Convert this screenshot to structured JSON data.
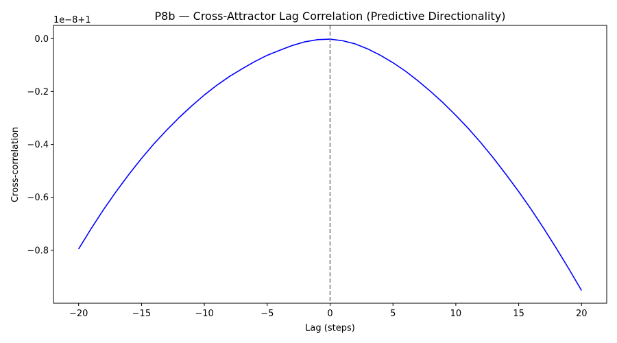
{
  "chart_data": {
    "type": "line",
    "title": "P8b — Cross-Attractor Lag Correlation (Predictive Directionality)",
    "xlabel": "Lag (steps)",
    "ylabel": "Cross-correlation",
    "offset_text": "1e−8+1",
    "xlim": [
      -22,
      22
    ],
    "ylim": [
      -1.0,
      0.05
    ],
    "x_ticks": [
      -20,
      -15,
      -10,
      -5,
      0,
      5,
      10,
      15,
      20
    ],
    "x_tick_labels": [
      "−20",
      "−15",
      "−10",
      "−5",
      "0",
      "5",
      "10",
      "15",
      "20"
    ],
    "y_ticks": [
      0.0,
      -0.2,
      -0.4,
      -0.6,
      -0.8
    ],
    "y_tick_labels": [
      "0.0",
      "−0.2",
      "−0.4",
      "−0.6",
      "−0.8"
    ],
    "grid": false,
    "reference_line": {
      "x": 0,
      "style": "dashed",
      "color": "#808080"
    },
    "series": [
      {
        "color": "#0000ff",
        "x": [
          -20,
          -19,
          -18,
          -17,
          -16,
          -15,
          -14,
          -13,
          -12,
          -11,
          -10,
          -9,
          -8,
          -7,
          -6,
          -5,
          -4,
          -3,
          -2,
          -1,
          0,
          1,
          2,
          3,
          4,
          5,
          6,
          7,
          8,
          9,
          10,
          11,
          12,
          13,
          14,
          15,
          16,
          17,
          18,
          19,
          20
        ],
        "y": [
          -0.795,
          -0.718,
          -0.645,
          -0.577,
          -0.513,
          -0.453,
          -0.397,
          -0.346,
          -0.298,
          -0.254,
          -0.213,
          -0.176,
          -0.143,
          -0.114,
          -0.087,
          -0.063,
          -0.044,
          -0.026,
          -0.012,
          -0.004,
          -0.002,
          -0.008,
          -0.02,
          -0.039,
          -0.063,
          -0.091,
          -0.123,
          -0.16,
          -0.2,
          -0.243,
          -0.29,
          -0.34,
          -0.394,
          -0.452,
          -0.514,
          -0.578,
          -0.646,
          -0.718,
          -0.793,
          -0.871,
          -0.952
        ]
      }
    ]
  }
}
